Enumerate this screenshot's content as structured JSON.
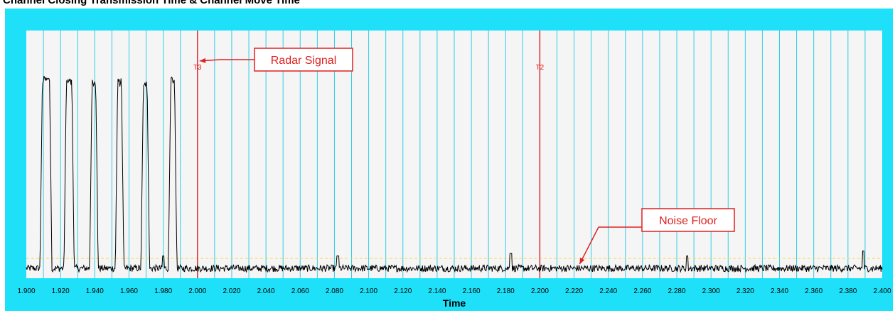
{
  "title": "Channel Closing Transmission Time & Channel Move Time",
  "colors": {
    "frame": "#1ee0f8",
    "plot_bg": "#f5f5f5",
    "gridline": "#30cce8",
    "marker": "#e02020",
    "threshold": "#ffd84a",
    "trace": "#000000",
    "callout": "#e02020"
  },
  "chart_data": {
    "type": "line",
    "title": "Channel Closing Transmission Time & Channel Move Time",
    "xlabel": "Time",
    "ylabel": "",
    "xlim": [
      1.9,
      2.4
    ],
    "ylim": [
      0,
      1
    ],
    "x_tick_step": 0.01,
    "x_tick_labels": [
      "1.900",
      "1.920",
      "1.940",
      "1.960",
      "1.980",
      "2.000",
      "2.020",
      "2.040",
      "2.060",
      "2.080",
      "2.100",
      "2.120",
      "2.140",
      "2.160",
      "2.180",
      "2.200",
      "2.220",
      "2.240",
      "2.260",
      "2.280",
      "2.300",
      "2.320",
      "2.340",
      "2.360",
      "2.380",
      "2.400"
    ],
    "grid": true,
    "pulses": [
      {
        "start": 1.908,
        "end": 1.915,
        "level": 0.8
      },
      {
        "start": 1.922,
        "end": 1.928,
        "level": 0.79
      },
      {
        "start": 1.937,
        "end": 1.942,
        "level": 0.79
      },
      {
        "start": 1.952,
        "end": 1.957,
        "level": 0.79
      },
      {
        "start": 1.967,
        "end": 1.972,
        "level": 0.79
      },
      {
        "start": 1.983,
        "end": 1.988,
        "level": 0.8
      }
    ],
    "noise_level": 0.04,
    "spikes": [
      {
        "x": 1.98,
        "y": 0.09
      },
      {
        "x": 2.082,
        "y": 0.09
      },
      {
        "x": 2.183,
        "y": 0.1
      },
      {
        "x": 2.286,
        "y": 0.09
      },
      {
        "x": 2.389,
        "y": 0.11
      }
    ],
    "threshold": 0.08,
    "markers": [
      {
        "label": "T3",
        "x": 2.0
      },
      {
        "label": "T2",
        "x": 2.2
      }
    ],
    "annotations": [
      {
        "text": "Radar Signal",
        "target_x": 2.0,
        "target_y": 0.86
      },
      {
        "text": "Noise Floor",
        "target_x": 2.222,
        "target_y": 0.04
      }
    ]
  }
}
